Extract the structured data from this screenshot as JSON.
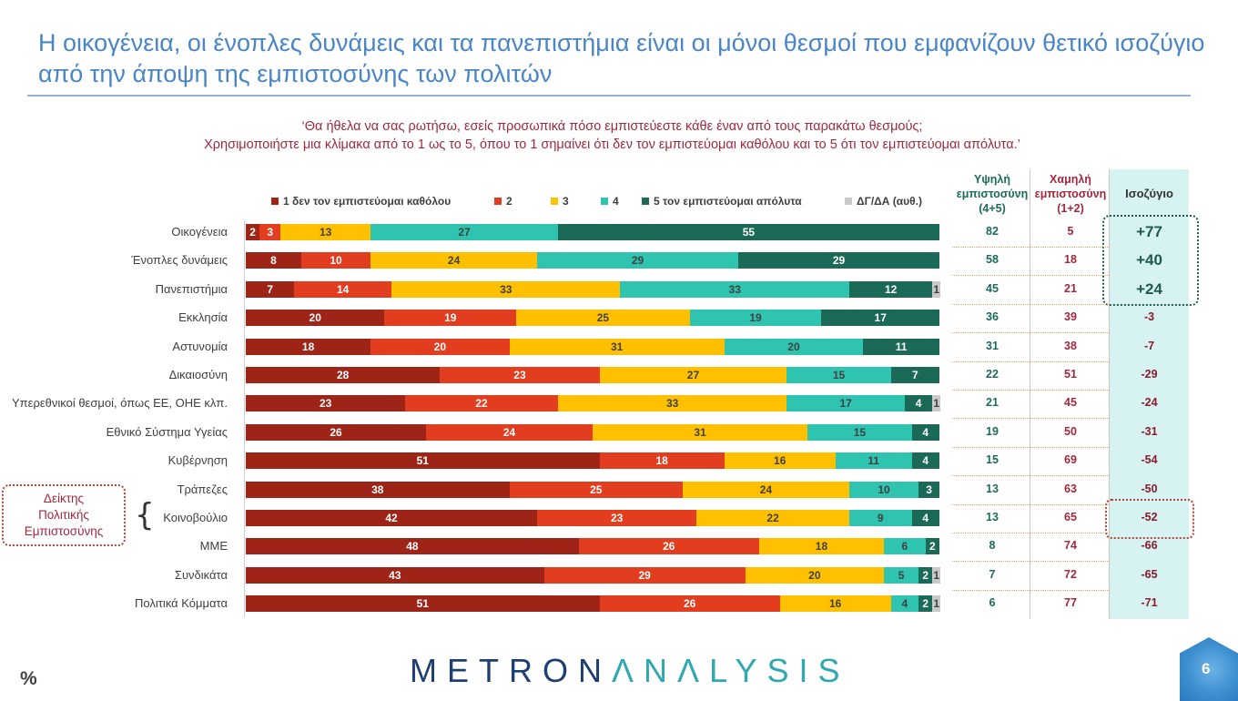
{
  "title": "Η οικογένεια, οι ένοπλες δυνάμεις και τα πανεπιστήμια είναι οι μόνοι θεσμοί που εμφανίζουν θετικό ισοζύγιο από την άποψη της εμπιστοσύνης των πολιτών",
  "question_line1": "‘Θα ήθελα να σας ρωτήσω, εσείς προσωπικά πόσο εμπιστεύεστε κάθε έναν από τους παρακάτω θεσμούς;",
  "question_line2": "Χρησιμοποιήστε μια κλίμακα από το 1 ως το 5, όπου το 1 σημαίνει ότι δεν τον εμπιστεύομαι καθόλου και το 5 ότι τον εμπιστεύομαι απόλυτα.’",
  "headers": {
    "high_line1": "Υψηλή",
    "high_line2": "εμπιστοσύνη",
    "high_line3": "(4+5)",
    "low_line1": "Χαμηλή",
    "low_line2": "εμπιστοσύνη",
    "low_line3": "(1+2)",
    "balance": "Ισοζύγιο"
  },
  "indicator": {
    "line1": "Δείκτης",
    "line2": "Πολιτικής",
    "line3": "Εμπιστοσύνης"
  },
  "brace": "{",
  "percent_label": "%",
  "logo": {
    "part1": "METRON",
    "part2": "ΛNΛLYSIS"
  },
  "page_number": "6",
  "chart_data": {
    "type": "bar",
    "orientation": "horizontal",
    "stacked": true,
    "categories": [
      "Οικογένεια",
      "Ένοπλες δυνάμεις",
      "Πανεπιστήμια",
      "Εκκλησία",
      "Αστυνομία",
      "Δικαιοσύνη",
      "Υπερεθνικοί θεσμοί, όπως ΕΕ, ΟΗΕ κλπ.",
      "Εθνικό Σύστημα Υγείας",
      "Κυβέρνηση",
      "Τράπεζες",
      "Κοινοβούλιο",
      "ΜΜΕ",
      "Συνδικάτα",
      "Πολιτικά Κόμματα"
    ],
    "series": [
      {
        "name": "1 δεν τον εμπιστεύομαι καθόλου",
        "color": "#9E2418",
        "label_color": "#ffffff",
        "values": [
          2,
          8,
          7,
          20,
          18,
          28,
          23,
          26,
          51,
          38,
          42,
          48,
          43,
          51
        ]
      },
      {
        "name": "2",
        "color": "#E23D1F",
        "label_color": "#ffffff",
        "values": [
          3,
          10,
          14,
          19,
          20,
          23,
          22,
          24,
          18,
          25,
          23,
          26,
          29,
          26
        ]
      },
      {
        "name": "3",
        "color": "#FFC000",
        "label_color": "#404040",
        "values": [
          13,
          24,
          33,
          25,
          31,
          27,
          33,
          31,
          16,
          24,
          22,
          18,
          20,
          16
        ]
      },
      {
        "name": "4",
        "color": "#2EC4B0",
        "label_color": "#404040",
        "values": [
          27,
          29,
          33,
          19,
          20,
          15,
          17,
          15,
          11,
          10,
          9,
          6,
          5,
          4
        ]
      },
      {
        "name": "5 τον εμπιστεύομαι απόλυτα",
        "color": "#1B6A58",
        "label_color": "#ffffff",
        "values": [
          55,
          29,
          12,
          17,
          11,
          7,
          4,
          4,
          4,
          3,
          4,
          2,
          2,
          2
        ]
      },
      {
        "name": "ΔΓ/ΔΑ (αυθ.)",
        "color": "#C9C9C9",
        "label_color": "#404040",
        "values": [
          0,
          0,
          1,
          0,
          0,
          0,
          1,
          0,
          0,
          0,
          0,
          0,
          1,
          1
        ]
      }
    ],
    "high_trust": [
      "82",
      "58",
      "45",
      "36",
      "31",
      "22",
      "21",
      "19",
      "15",
      "13",
      "13",
      "8",
      "7",
      "6"
    ],
    "low_trust": [
      "5",
      "18",
      "21",
      "39",
      "38",
      "51",
      "45",
      "50",
      "69",
      "63",
      "65",
      "74",
      "72",
      "77"
    ],
    "balance": [
      "+77",
      "+40",
      "+24",
      "-3",
      "-7",
      "-29",
      "-24",
      "-31",
      "-54",
      "-50",
      "-52",
      "-66",
      "-65",
      "-71"
    ],
    "xlim": [
      0,
      100
    ],
    "legend_position": "top"
  }
}
